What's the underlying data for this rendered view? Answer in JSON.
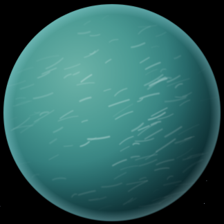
{
  "scene": {
    "subject": "planet",
    "colors": {
      "space": "#000000",
      "ocean_light": "#5fa8a0",
      "ocean_mid": "#2f7f7c",
      "ocean_dark": "#0f3a40",
      "clouds": "#dfeeee",
      "atmosphere": "#7fc7d0"
    }
  }
}
